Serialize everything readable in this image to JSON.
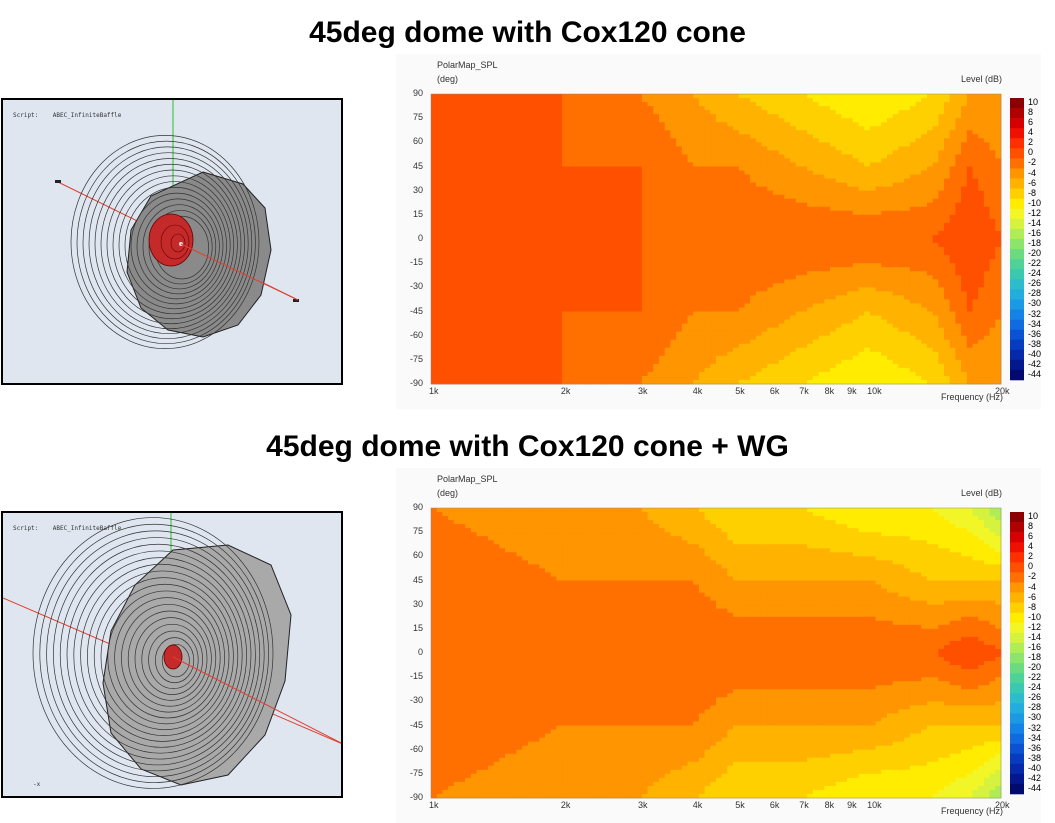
{
  "panels": [
    {
      "title": "45deg dome with Cox120 cone",
      "viewer": {
        "script_label": "Script:",
        "script_name": "ABEC_InfiniteBaffle",
        "axis_label": ""
      },
      "polar": {
        "plot_title": "PolarMap_SPL",
        "y_unit": "(deg)",
        "level_label": "Level  (dB)",
        "x_label": "Frequency  (Hz)"
      }
    },
    {
      "title": "45deg dome with Cox120 cone + WG",
      "viewer": {
        "script_label": "Script:",
        "script_name": "ABEC_InfiniteBaffle",
        "axis_label": "-x"
      },
      "polar": {
        "plot_title": "PolarMap_SPL",
        "y_unit": "(deg)",
        "level_label": "Level  (dB)",
        "x_label": "Frequency  (Hz)"
      }
    }
  ],
  "chart_data": [
    {
      "type": "heatmap",
      "title": "PolarMap_SPL",
      "xlabel": "Frequency  (Hz)",
      "ylabel": "(deg)",
      "colorbar_label": "Level  (dB)",
      "x_scale": "log",
      "xlim": [
        1000,
        20000
      ],
      "ylim": [
        -90,
        90
      ],
      "x_ticks": [
        1000,
        2000,
        3000,
        4000,
        5000,
        6000,
        7000,
        8000,
        9000,
        10000,
        20000
      ],
      "x_tick_labels": [
        "1k",
        "2k",
        "3k",
        "4k",
        "5k",
        "6k",
        "7k",
        "8k",
        "9k",
        "10k",
        "20k"
      ],
      "y_ticks": [
        90,
        75,
        60,
        45,
        30,
        15,
        0,
        -15,
        -30,
        -45,
        -60,
        -75,
        -90
      ],
      "colorbar_ticks": [
        10,
        8,
        6,
        4,
        2,
        0,
        -2,
        -4,
        -6,
        -8,
        -10,
        -12,
        -14,
        -16,
        -18,
        -20,
        -22,
        -24,
        -26,
        -28,
        -30,
        -32,
        -34,
        -36,
        -38,
        -40,
        -42,
        -44
      ],
      "contours_dB_at_angle_vs_freq": {
        "freq": [
          1000,
          2000,
          3000,
          4000,
          5000,
          7000,
          10000,
          14000,
          17000,
          20000
        ],
        "level_at_90deg": [
          0,
          0,
          -2,
          -4,
          -6,
          -8,
          -10,
          -8,
          -4,
          -4
        ],
        "level_at_45deg": [
          0,
          0,
          0,
          -2,
          -2,
          -4,
          -6,
          -4,
          0,
          -2
        ],
        "level_at_0deg": [
          0,
          0,
          0,
          0,
          0,
          0,
          0,
          0,
          2,
          0
        ]
      }
    },
    {
      "type": "heatmap",
      "title": "PolarMap_SPL",
      "xlabel": "Frequency  (Hz)",
      "ylabel": "(deg)",
      "colorbar_label": "Level  (dB)",
      "x_scale": "log",
      "xlim": [
        1000,
        20000
      ],
      "ylim": [
        -90,
        90
      ],
      "x_ticks": [
        1000,
        2000,
        3000,
        4000,
        5000,
        6000,
        7000,
        8000,
        9000,
        10000,
        20000
      ],
      "x_tick_labels": [
        "1k",
        "2k",
        "3k",
        "4k",
        "5k",
        "6k",
        "7k",
        "8k",
        "9k",
        "10k",
        "20k"
      ],
      "y_ticks": [
        90,
        75,
        60,
        45,
        30,
        15,
        0,
        -15,
        -30,
        -45,
        -60,
        -75,
        -90
      ],
      "colorbar_ticks": [
        10,
        8,
        6,
        4,
        2,
        0,
        -2,
        -4,
        -6,
        -8,
        -10,
        -12,
        -14,
        -16,
        -18,
        -20,
        -22,
        -24,
        -26,
        -28,
        -30,
        -32,
        -34,
        -36,
        -38,
        -40,
        -42,
        -44
      ],
      "contours_dB_at_angle_vs_freq": {
        "freq": [
          1000,
          2000,
          3000,
          4000,
          5000,
          7000,
          10000,
          14000,
          17000,
          20000
        ],
        "level_at_90deg": [
          -2,
          -4,
          -4,
          -6,
          -8,
          -8,
          -10,
          -10,
          -12,
          -16
        ],
        "level_at_45deg": [
          0,
          -2,
          -2,
          -2,
          -4,
          -4,
          -4,
          -6,
          -6,
          -6
        ],
        "level_at_0deg": [
          0,
          0,
          0,
          0,
          0,
          0,
          0,
          0,
          2,
          0
        ]
      }
    }
  ]
}
